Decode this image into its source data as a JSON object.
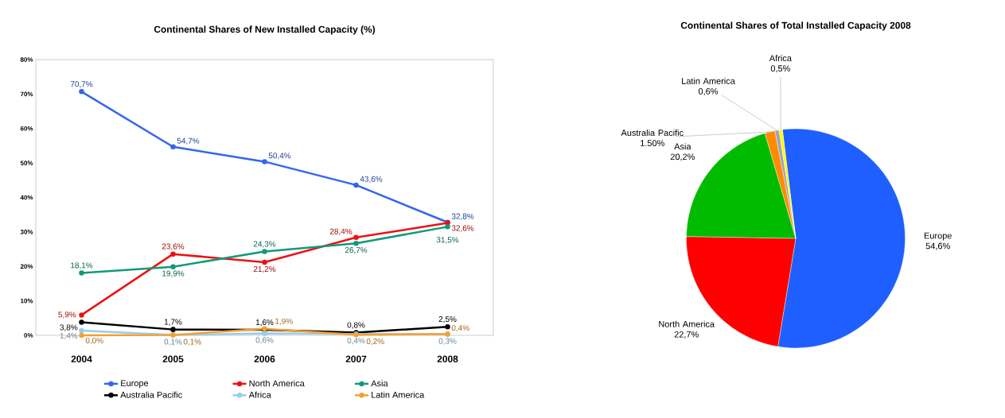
{
  "chart_data": [
    {
      "type": "line",
      "title": "Continental Shares of New Installed Capacity (%)",
      "categories": [
        "2004",
        "2005",
        "2006",
        "2007",
        "2008"
      ],
      "series": [
        {
          "name": "Europe",
          "color": "#3366ee",
          "values": [
            70.7,
            54.7,
            50.4,
            43.6,
            32.8
          ],
          "value_labels": [
            "70,7%",
            "54,7%",
            "50,4%",
            "43,6%",
            "32,8%"
          ]
        },
        {
          "name": "North America",
          "color": "#ee1111",
          "values": [
            5.9,
            23.6,
            21.2,
            28.4,
            32.6
          ],
          "value_labels": [
            "5,9%",
            "23,6%",
            "21,2%",
            "28,4%",
            "32,6%"
          ]
        },
        {
          "name": "Asia",
          "color": "#11997a",
          "values": [
            18.1,
            19.9,
            24.3,
            26.7,
            31.5
          ],
          "value_labels": [
            "18,1%",
            "19,9%",
            "24,3%",
            "26,7%",
            "31,5%"
          ]
        },
        {
          "name": "Australia Pacific",
          "color": "#000000",
          "values": [
            3.8,
            1.7,
            1.6,
            0.8,
            2.5
          ],
          "value_labels": [
            "3,8%",
            "1,7%",
            "1,6%",
            "0,8%",
            "2,5%"
          ]
        },
        {
          "name": "Africa",
          "color": "#99ccee",
          "values": [
            1.4,
            0.1,
            0.6,
            0.4,
            0.3
          ],
          "value_labels": [
            "1,4%",
            "0,1%",
            "0,6%",
            "0,4%",
            "0,3%"
          ]
        },
        {
          "name": "Latin America",
          "color": "#f5a030",
          "values": [
            0.0,
            0.1,
            1.9,
            0.2,
            0.4
          ],
          "value_labels": [
            "0,0%",
            "0,1%",
            "1,9%",
            "0,2%",
            "0,4%"
          ]
        }
      ],
      "ylim": [
        0,
        80
      ],
      "yticks": [
        {
          "value": 0,
          "label": "0%"
        },
        {
          "value": 10,
          "label": "10%"
        },
        {
          "value": 20,
          "label": "20%"
        },
        {
          "value": 30,
          "label": "30%"
        },
        {
          "value": 40,
          "label": "40%"
        },
        {
          "value": 50,
          "label": "50%"
        },
        {
          "value": 60,
          "label": "60%"
        },
        {
          "value": 70,
          "label": "70%"
        },
        {
          "value": 80,
          "label": "80%"
        }
      ],
      "legend": "bottom",
      "marker": "circle",
      "line_style": "solid"
    },
    {
      "type": "pie",
      "title": "Continental Shares of Total Installed Capacity 2008",
      "categories": [
        "Europe",
        "North America",
        "Asia",
        "Australia Pacific",
        "Latin America",
        "Africa"
      ],
      "values": [
        54.6,
        22.7,
        20.2,
        1.5,
        0.6,
        0.5
      ],
      "value_labels": [
        "54,6%",
        "22,7%",
        "20,2%",
        "1.50%",
        "0,6%",
        "0,5%"
      ],
      "colors": [
        "#1f5fff",
        "#ff0000",
        "#00bb00",
        "#ff8c00",
        "#a0a0c0",
        "#ffff00"
      ]
    }
  ]
}
